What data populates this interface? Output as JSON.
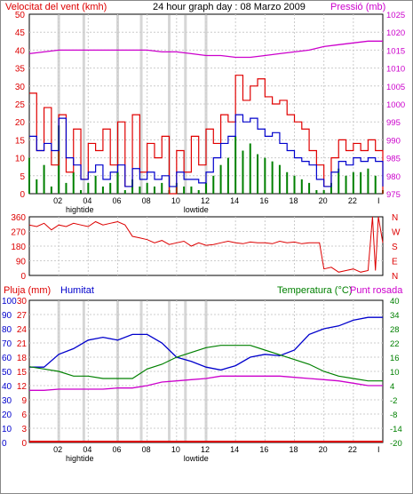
{
  "header": {
    "wind_label": "Velocitat del vent (kmh)",
    "title": "24 hour graph day : 08 Marzo 2009",
    "pressure_label": "Pressió (mb)"
  },
  "bottom_header": {
    "rain_label": "Pluja (mm)",
    "humidity_label": "Humitat",
    "temp_label": "Temperatura (°C)",
    "dew_label": "Punt rosada"
  },
  "colors": {
    "wind": "#ff0000",
    "gust": "#e00000",
    "avg_wind": "#0000cc",
    "wind_bar": "#008000",
    "pressure": "#cc00cc",
    "direction": "#dd0000",
    "humidity": "#0000cc",
    "temperature": "#008000",
    "dewpoint": "#cc00cc",
    "rain": "#dd0000",
    "tide_band": "#cccccc"
  },
  "chart_data": [
    {
      "type": "line",
      "name": "wind-pressure",
      "title": "24 hour graph day : 08 Marzo 2009",
      "x_tick_labels": [
        "02",
        "04",
        "06",
        "08",
        "10",
        "12",
        "14",
        "16",
        "18",
        "20",
        "22",
        "I"
      ],
      "x_range": [
        0,
        24
      ],
      "tide_labels": [
        {
          "text": "hightide",
          "x": 3.5
        },
        {
          "text": "lowtide",
          "x": 11.5
        }
      ],
      "tide_lines_x": [
        2,
        3.7,
        6,
        7.6,
        9.5,
        10.6,
        12
      ],
      "left_axis": {
        "label": "Velocitat del vent (kmh)",
        "range": [
          0,
          50
        ],
        "ticks": [
          0,
          5,
          10,
          15,
          20,
          25,
          30,
          35,
          40,
          45,
          50
        ]
      },
      "right_axis": {
        "label": "Pressió (mb)",
        "range": [
          975,
          1025
        ],
        "ticks": [
          975,
          980,
          985,
          990,
          995,
          1000,
          1005,
          1010,
          1015,
          1020,
          1025
        ]
      },
      "series": [
        {
          "key": "pressure",
          "axis": "right",
          "x": [
            0,
            1,
            2,
            3,
            4,
            5,
            6,
            7,
            8,
            9,
            10,
            11,
            12,
            13,
            14,
            15,
            16,
            17,
            18,
            19,
            20,
            21,
            22,
            23,
            24
          ],
          "y": [
            1014,
            1014.5,
            1015,
            1015,
            1015,
            1015,
            1015,
            1015,
            1015,
            1014.5,
            1014.5,
            1014,
            1013.5,
            1013.5,
            1013,
            1013,
            1013.5,
            1014,
            1014.5,
            1015,
            1016,
            1016.5,
            1017,
            1017.5,
            1017.5
          ]
        },
        {
          "key": "gust",
          "axis": "left",
          "x": [
            0,
            0.5,
            1,
            1.5,
            2,
            2.5,
            3,
            3.5,
            4,
            4.5,
            5,
            5.5,
            6,
            6.5,
            7,
            7.5,
            8,
            8.5,
            9,
            9.5,
            10,
            10.5,
            11,
            11.5,
            12,
            12.5,
            13,
            13.5,
            14,
            14.5,
            15,
            15.5,
            16,
            16.5,
            17,
            17.5,
            18,
            18.5,
            19,
            19.5,
            20,
            20.5,
            21,
            21.5,
            22,
            22.5,
            23,
            23.5,
            24
          ],
          "y": [
            28,
            12,
            24,
            8,
            22,
            6,
            18,
            4,
            14,
            12,
            18,
            8,
            20,
            2,
            22,
            6,
            14,
            10,
            16,
            0,
            12,
            6,
            16,
            8,
            18,
            14,
            22,
            20,
            33,
            26,
            30,
            32,
            27,
            25,
            26,
            22,
            20,
            18,
            12,
            8,
            2,
            10,
            15,
            12,
            14,
            12,
            15,
            12,
            0
          ]
        },
        {
          "key": "avg_wind",
          "axis": "left",
          "x": [
            0,
            0.5,
            1,
            1.5,
            2,
            2.5,
            3,
            3.5,
            4,
            4.5,
            5,
            5.5,
            6,
            6.5,
            7,
            7.5,
            8,
            8.5,
            9,
            9.5,
            10,
            10.5,
            11,
            11.5,
            12,
            12.5,
            13,
            13.5,
            14,
            14.5,
            15,
            15.5,
            16,
            16.5,
            17,
            17.5,
            18,
            18.5,
            19,
            19.5,
            20,
            20.5,
            21,
            21.5,
            22,
            22.5,
            23,
            23.5,
            24
          ],
          "y": [
            16,
            12,
            14,
            12,
            21,
            10,
            8,
            4,
            6,
            8,
            4,
            6,
            8,
            2,
            7,
            4,
            6,
            4,
            5,
            2,
            6,
            4,
            4,
            3,
            6,
            10,
            14,
            16,
            22,
            20,
            21,
            18,
            16,
            17,
            14,
            12,
            10,
            9,
            8,
            4,
            2,
            6,
            9,
            8,
            10,
            9,
            10,
            9,
            2
          ]
        },
        {
          "key": "wind_bar",
          "axis": "left",
          "x": [
            0,
            0.5,
            1,
            1.5,
            2,
            2.5,
            3,
            3.5,
            4,
            4.5,
            5,
            5.5,
            6,
            6.5,
            7,
            7.5,
            8,
            8.5,
            9,
            9.5,
            10,
            10.5,
            11,
            11.5,
            12,
            12.5,
            13,
            13.5,
            14,
            14.5,
            15,
            15.5,
            16,
            16.5,
            17,
            17.5,
            18,
            18.5,
            19,
            19.5,
            20,
            20.5,
            21,
            21.5,
            22,
            22.5,
            23,
            23.5,
            24
          ],
          "y": [
            10,
            4,
            8,
            2,
            19,
            3,
            6,
            1,
            3,
            5,
            2,
            3,
            6,
            1,
            4,
            2,
            3,
            2,
            3,
            1,
            3,
            2,
            2,
            1,
            3,
            5,
            8,
            10,
            16,
            12,
            14,
            11,
            10,
            9,
            8,
            6,
            5,
            4,
            3,
            1,
            1,
            3,
            7,
            5,
            6,
            6,
            7,
            5,
            1
          ]
        }
      ]
    },
    {
      "type": "line",
      "name": "wind-direction",
      "x_range": [
        0,
        24
      ],
      "left_axis": {
        "range": [
          0,
          360
        ],
        "ticks": [
          0,
          90,
          180,
          270,
          360
        ]
      },
      "right_axis_labels": [
        "N",
        "W",
        "S",
        "E",
        "N"
      ],
      "series": [
        {
          "key": "direction",
          "x": [
            0,
            0.5,
            1,
            1.5,
            2,
            2.5,
            3,
            3.5,
            4,
            4.5,
            5,
            5.5,
            6,
            6.5,
            7,
            7.5,
            8,
            8.5,
            9,
            9.5,
            10,
            10.5,
            11,
            11.5,
            12,
            12.5,
            13,
            13.5,
            14,
            14.5,
            15,
            15.5,
            16,
            16.5,
            17,
            17.5,
            18,
            18.5,
            19,
            19.5,
            19.7,
            20,
            20.5,
            21,
            21.5,
            22,
            22.5,
            23,
            23.3,
            23.5,
            23.7,
            24
          ],
          "y": [
            310,
            300,
            320,
            280,
            310,
            300,
            320,
            310,
            300,
            330,
            310,
            320,
            330,
            310,
            240,
            230,
            220,
            200,
            215,
            190,
            200,
            210,
            180,
            200,
            185,
            190,
            200,
            210,
            200,
            195,
            205,
            200,
            200,
            195,
            210,
            200,
            205,
            195,
            200,
            200,
            200,
            40,
            50,
            20,
            30,
            40,
            20,
            30,
            360,
            30,
            360,
            200
          ]
        }
      ]
    },
    {
      "type": "line",
      "name": "humidity-temperature",
      "x_range": [
        0,
        24
      ],
      "x_tick_labels": [
        "02",
        "04",
        "06",
        "08",
        "10",
        "12",
        "14",
        "16",
        "18",
        "20",
        "22",
        "I"
      ],
      "tide_labels": [
        {
          "text": "hightide",
          "x": 3.5
        },
        {
          "text": "lowtide",
          "x": 11.5
        }
      ],
      "tide_lines_x": [
        2,
        3.7,
        6,
        7.6,
        9.5,
        10.6,
        12
      ],
      "left_axis": {
        "label": "Pluja (mm)",
        "range": [
          0,
          30
        ],
        "ticks": [
          0,
          3,
          6,
          9,
          12,
          15,
          18,
          21,
          24,
          27,
          30
        ]
      },
      "left_axis_humidity": {
        "label": "Humitat",
        "range": [
          0,
          100
        ],
        "ticks": [
          0,
          10,
          20,
          30,
          40,
          50,
          60,
          70,
          80,
          90,
          100
        ]
      },
      "right_axis": {
        "label": "Temperatura (°C)",
        "range": [
          -20,
          40
        ],
        "ticks": [
          -20,
          -14,
          -8,
          -2,
          4,
          10,
          16,
          22,
          28,
          34,
          40
        ]
      },
      "series": [
        {
          "key": "humidity",
          "axis": "humidity",
          "x": [
            0,
            1,
            2,
            3,
            4,
            5,
            6,
            7,
            8,
            9,
            10,
            11,
            12,
            13,
            14,
            15,
            16,
            17,
            18,
            19,
            20,
            21,
            22,
            23,
            24
          ],
          "y": [
            53,
            53,
            62,
            66,
            72,
            74,
            72,
            76,
            76,
            70,
            60,
            57,
            53,
            51,
            54,
            60,
            62,
            61,
            65,
            76,
            80,
            82,
            86,
            88,
            88
          ]
        },
        {
          "key": "temperature",
          "axis": "right",
          "x": [
            0,
            1,
            2,
            3,
            4,
            5,
            6,
            7,
            8,
            9,
            10,
            11,
            12,
            13,
            14,
            15,
            16,
            17,
            18,
            19,
            20,
            21,
            22,
            23,
            24
          ],
          "y": [
            12,
            11,
            10,
            8,
            8,
            7,
            7,
            7,
            11,
            13,
            16,
            18,
            20,
            21,
            21,
            21,
            19,
            17,
            15,
            13,
            10,
            8,
            7,
            6,
            6
          ]
        },
        {
          "key": "dewpoint",
          "axis": "right",
          "x": [
            0,
            1,
            2,
            3,
            4,
            5,
            6,
            7,
            8,
            9,
            10,
            11,
            12,
            13,
            14,
            15,
            16,
            17,
            18,
            19,
            20,
            21,
            22,
            23,
            24
          ],
          "y": [
            2,
            2,
            2.5,
            2.5,
            2.5,
            2.5,
            3,
            3,
            4,
            5.5,
            6,
            6.5,
            7,
            8,
            8,
            8,
            8,
            8,
            7.5,
            7,
            6.5,
            6,
            5,
            4,
            4
          ]
        },
        {
          "key": "rain",
          "axis": "left",
          "x": [
            0,
            24
          ],
          "y": [
            0,
            0
          ]
        }
      ]
    }
  ]
}
